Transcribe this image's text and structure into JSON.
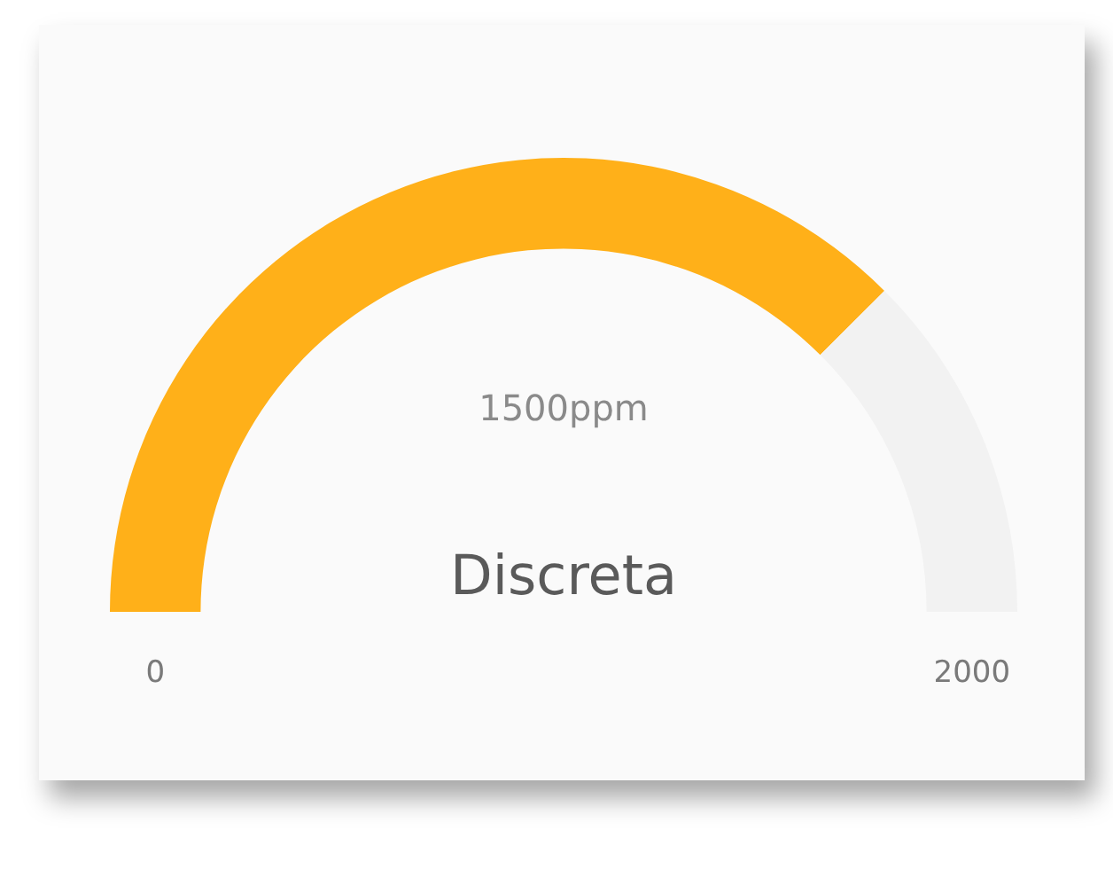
{
  "chart_data": {
    "type": "donut",
    "categories": [
      null,
      null
    ],
    "values": [
      1500,
      500
    ],
    "colors": [
      "#ffb019",
      "#f2f2f2"
    ],
    "value_labels": [
      "1500ppm",
      null
    ],
    "annotations": [
      "Discreta",
      "0",
      "2000"
    ],
    "legend": false
  }
}
